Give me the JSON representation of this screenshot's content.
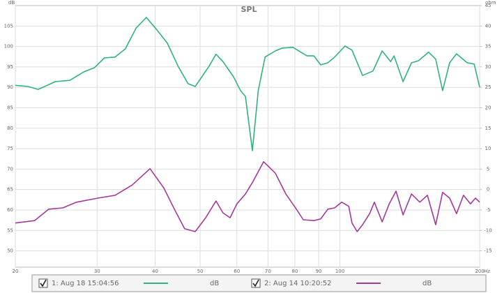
{
  "chart_data": {
    "type": "line",
    "title": "SPL",
    "y_unit": "dB",
    "y2_unit": "ohm",
    "x_unit": "Hz",
    "log_x": true,
    "grid": true,
    "xlim": [
      20,
      200
    ],
    "xticks": [
      20,
      30,
      40,
      50,
      60,
      70,
      80,
      90,
      100,
      200
    ],
    "ylim": [
      46,
      110
    ],
    "yticks": [
      50,
      55,
      60,
      65,
      70,
      75,
      80,
      85,
      90,
      95,
      100,
      105
    ],
    "y2lim": [
      -19,
      45
    ],
    "y2ticks": [
      -15,
      -10,
      -5,
      0,
      5,
      10,
      15,
      20,
      25,
      30,
      35,
      40,
      45
    ],
    "series": [
      {
        "name": "1: Aug 18 15:04:56",
        "unit": "dB",
        "color": "#2fb37c",
        "x": [
          20,
          21.3,
          22.4,
          24.4,
          26.2,
          28.1,
          29.6,
          31.1,
          32.8,
          34.5,
          36.4,
          38.3,
          40.4,
          42.5,
          44.8,
          47.1,
          48.8,
          52.3,
          54.1,
          56.0,
          59.0,
          61.1,
          62.6,
          64.8,
          66.7,
          69.0,
          72.6,
          75.2,
          79.2,
          84.9,
          87.9,
          90.9,
          94.2,
          97.4,
          102.6,
          106.2,
          111.9,
          117.8,
          123.3,
          128.6,
          130.8,
          136.8,
          142.6,
          147.6,
          155.3,
          160.8,
          166.4,
          172.3,
          178.3,
          188.0,
          194.6,
          200
        ],
        "values": [
          90.5,
          90.2,
          89.5,
          91.4,
          91.7,
          93.8,
          94.8,
          97.2,
          97.4,
          99.4,
          104.5,
          107.1,
          104.0,
          100.8,
          95.2,
          90.9,
          90.2,
          95.2,
          98.1,
          96.3,
          92.6,
          89.2,
          87.8,
          74.5,
          89.2,
          97.4,
          98.9,
          99.6,
          99.8,
          97.7,
          97.7,
          95.5,
          96.0,
          97.4,
          100.1,
          99.1,
          92.9,
          94.0,
          98.9,
          96.3,
          97.7,
          91.4,
          96.0,
          96.5,
          98.6,
          96.9,
          89.2,
          96.0,
          98.2,
          96.0,
          95.7,
          90.0
        ]
      },
      {
        "name": "2: Aug 14 10:20:52",
        "unit": "dB",
        "color": "#a23a9c",
        "x": [
          20,
          22.0,
          23.6,
          25.3,
          27.1,
          30.1,
          32.8,
          35.7,
          39.0,
          41.8,
          44.0,
          46.3,
          48.8,
          51.4,
          54.1,
          56.0,
          58.0,
          60.0,
          62.6,
          64.8,
          68.5,
          72.6,
          76.5,
          80.6,
          83.4,
          87.9,
          90.9,
          94.2,
          97.4,
          100.9,
          104.5,
          106.2,
          108.9,
          111.9,
          115.9,
          118.6,
          123.3,
          127.6,
          132.1,
          136.8,
          142.6,
          148.6,
          154.3,
          160.8,
          166.4,
          172.3,
          178.3,
          184.6,
          191.1,
          195.9,
          200
        ],
        "values": [
          56.8,
          57.4,
          60.2,
          60.5,
          61.9,
          62.9,
          63.6,
          66.1,
          70.1,
          65.3,
          60.2,
          55.4,
          54.7,
          58.1,
          62.2,
          59.3,
          58.1,
          61.5,
          63.9,
          66.7,
          71.8,
          69.0,
          63.9,
          60.2,
          57.6,
          57.4,
          57.8,
          60.2,
          60.5,
          61.9,
          60.9,
          56.8,
          54.7,
          56.4,
          59.1,
          61.9,
          57.1,
          61.4,
          64.6,
          58.8,
          63.9,
          61.9,
          63.6,
          56.4,
          64.3,
          62.9,
          59.1,
          63.6,
          61.5,
          62.9,
          61.9
        ]
      }
    ]
  }
}
